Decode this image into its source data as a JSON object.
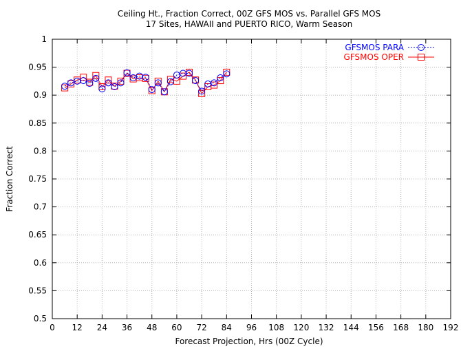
{
  "chart_data": {
    "type": "line",
    "title": "Ceiling Ht., Fraction Correct, 00Z GFS MOS vs. Parallel GFS MOS",
    "subtitle": "17 Sites, HAWAII and PUERTO RICO, Warm Season",
    "xlabel": "Forecast Projection, Hrs (00Z Cycle)",
    "ylabel": "Fraction Correct",
    "xlim": [
      0,
      192
    ],
    "ylim": [
      0.5,
      1.0
    ],
    "xticks": [
      0,
      12,
      24,
      36,
      48,
      60,
      72,
      84,
      96,
      108,
      120,
      132,
      144,
      156,
      168,
      180,
      192
    ],
    "yticks": [
      0.5,
      0.55,
      0.6,
      0.65,
      0.7,
      0.75,
      0.8,
      0.85,
      0.9,
      0.95,
      1.0
    ],
    "ytick_labels": [
      "0.5",
      "0.55",
      "0.6",
      "0.65",
      "0.7",
      "0.75",
      "0.8",
      "0.85",
      "0.9",
      "0.95",
      "1"
    ],
    "grid": true,
    "legend_position": "top-right",
    "x": [
      6,
      9,
      12,
      15,
      18,
      21,
      24,
      27,
      30,
      33,
      36,
      39,
      42,
      45,
      48,
      51,
      54,
      57,
      60,
      63,
      66,
      69,
      72,
      75,
      78,
      81,
      84
    ],
    "series": [
      {
        "name": "GFSMOS PARA",
        "color": "#0000ff",
        "marker": "circle",
        "linestyle": "dotted",
        "values": [
          0.916,
          0.922,
          0.925,
          0.926,
          0.921,
          0.93,
          0.911,
          0.922,
          0.915,
          0.922,
          0.94,
          0.931,
          0.934,
          0.932,
          0.91,
          0.922,
          0.906,
          0.924,
          0.936,
          0.939,
          0.939,
          0.926,
          0.907,
          0.92,
          0.922,
          0.931,
          0.938
        ]
      },
      {
        "name": "GFSMOS OPER",
        "color": "#ff0000",
        "marker": "square",
        "linestyle": "solid",
        "values": [
          0.913,
          0.92,
          0.927,
          0.932,
          0.923,
          0.935,
          0.915,
          0.927,
          0.916,
          0.925,
          0.939,
          0.929,
          0.931,
          0.93,
          0.908,
          0.925,
          0.906,
          0.928,
          0.925,
          0.934,
          0.941,
          0.927,
          0.903,
          0.915,
          0.918,
          0.926,
          0.941
        ]
      }
    ]
  }
}
